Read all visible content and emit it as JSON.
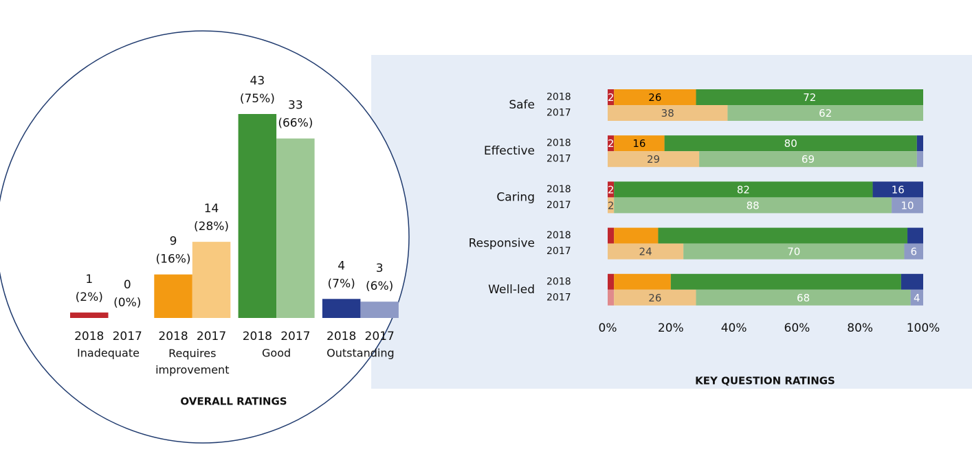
{
  "chart_data": [
    {
      "type": "bar",
      "title": "OVERALL RATINGS",
      "categories": [
        "Inadequate",
        "Requires improvement",
        "Good",
        "Outstanding"
      ],
      "series": [
        {
          "name": "2018",
          "colors": [
            "#c0272d",
            "#f39a12",
            "#3f9337",
            "#243a8c"
          ],
          "values": [
            1,
            9,
            43,
            4
          ],
          "percentages": [
            2,
            16,
            75,
            7
          ],
          "percentage_labels": [
            "(2%)",
            "(16%)",
            "(75%)",
            "(7%)"
          ]
        },
        {
          "name": "2017",
          "colors": [
            "#e08a8c",
            "#f8c97f",
            "#9dc894",
            "#8e9ac6"
          ],
          "values": [
            0,
            14,
            33,
            3
          ],
          "percentages": [
            0,
            28,
            66,
            6
          ],
          "percentage_labels": [
            "(0%)",
            "(28%)",
            "(66%)",
            "(6%)"
          ]
        }
      ]
    },
    {
      "type": "stacked-bar-horizontal",
      "title": "KEY QUESTION RATINGS",
      "colors_2018": [
        "#c0272d",
        "#f39a12",
        "#3f9337",
        "#243a8c"
      ],
      "colors_2017": [
        "#e08a8c",
        "#efc384",
        "#93c18c",
        "#8e9ac6"
      ],
      "label_colors_2018": [
        "#ffffff",
        "#000000",
        "#ffffff",
        "#ffffff"
      ],
      "label_colors_2017": [
        "#ffffff",
        "#444444",
        "#ffffff",
        "#ffffff"
      ],
      "xlim": [
        0,
        100
      ],
      "xticks": [
        {
          "value": 0,
          "label": "0%"
        },
        {
          "value": 20,
          "label": "20%"
        },
        {
          "value": 40,
          "label": "40%"
        },
        {
          "value": 60,
          "label": "60%"
        },
        {
          "value": 80,
          "label": "80%"
        },
        {
          "value": 100,
          "label": "100%"
        }
      ],
      "groups": [
        {
          "name": "Safe",
          "rows": [
            {
              "year": "2018",
              "values": [
                2,
                26,
                72,
                0
              ],
              "value_labels": [
                "2",
                "26",
                "72",
                null
              ]
            },
            {
              "year": "2017",
              "values": [
                0,
                38,
                62,
                0
              ],
              "value_labels": [
                null,
                "38",
                "62",
                null
              ]
            }
          ]
        },
        {
          "name": "Effective",
          "rows": [
            {
              "year": "2018",
              "values": [
                2,
                16,
                80,
                2
              ],
              "value_labels": [
                "2",
                "16",
                "80",
                null
              ]
            },
            {
              "year": "2017",
              "values": [
                0,
                29,
                69,
                2
              ],
              "value_labels": [
                null,
                "29",
                "69",
                null
              ]
            }
          ]
        },
        {
          "name": "Caring",
          "rows": [
            {
              "year": "2018",
              "values": [
                2,
                0,
                82,
                16
              ],
              "value_labels": [
                "2",
                null,
                "82",
                "16"
              ]
            },
            {
              "year": "2017",
              "values": [
                0,
                2,
                88,
                10
              ],
              "value_labels": [
                null,
                "2",
                "88",
                "10"
              ]
            }
          ]
        },
        {
          "name": "Responsive",
          "rows": [
            {
              "year": "2018",
              "values": [
                2,
                14,
                79,
                5
              ],
              "value_labels": [
                null,
                null,
                null,
                null
              ]
            },
            {
              "year": "2017",
              "values": [
                0,
                24,
                70,
                6
              ],
              "value_labels": [
                null,
                "24",
                "70",
                "6"
              ]
            }
          ]
        },
        {
          "name": "Well-led",
          "rows": [
            {
              "year": "2018",
              "values": [
                2,
                18,
                73,
                7
              ],
              "value_labels": [
                null,
                null,
                null,
                null
              ]
            },
            {
              "year": "2017",
              "values": [
                2,
                26,
                68,
                4
              ],
              "value_labels": [
                null,
                "26",
                "68",
                "4"
              ]
            }
          ]
        }
      ]
    }
  ]
}
